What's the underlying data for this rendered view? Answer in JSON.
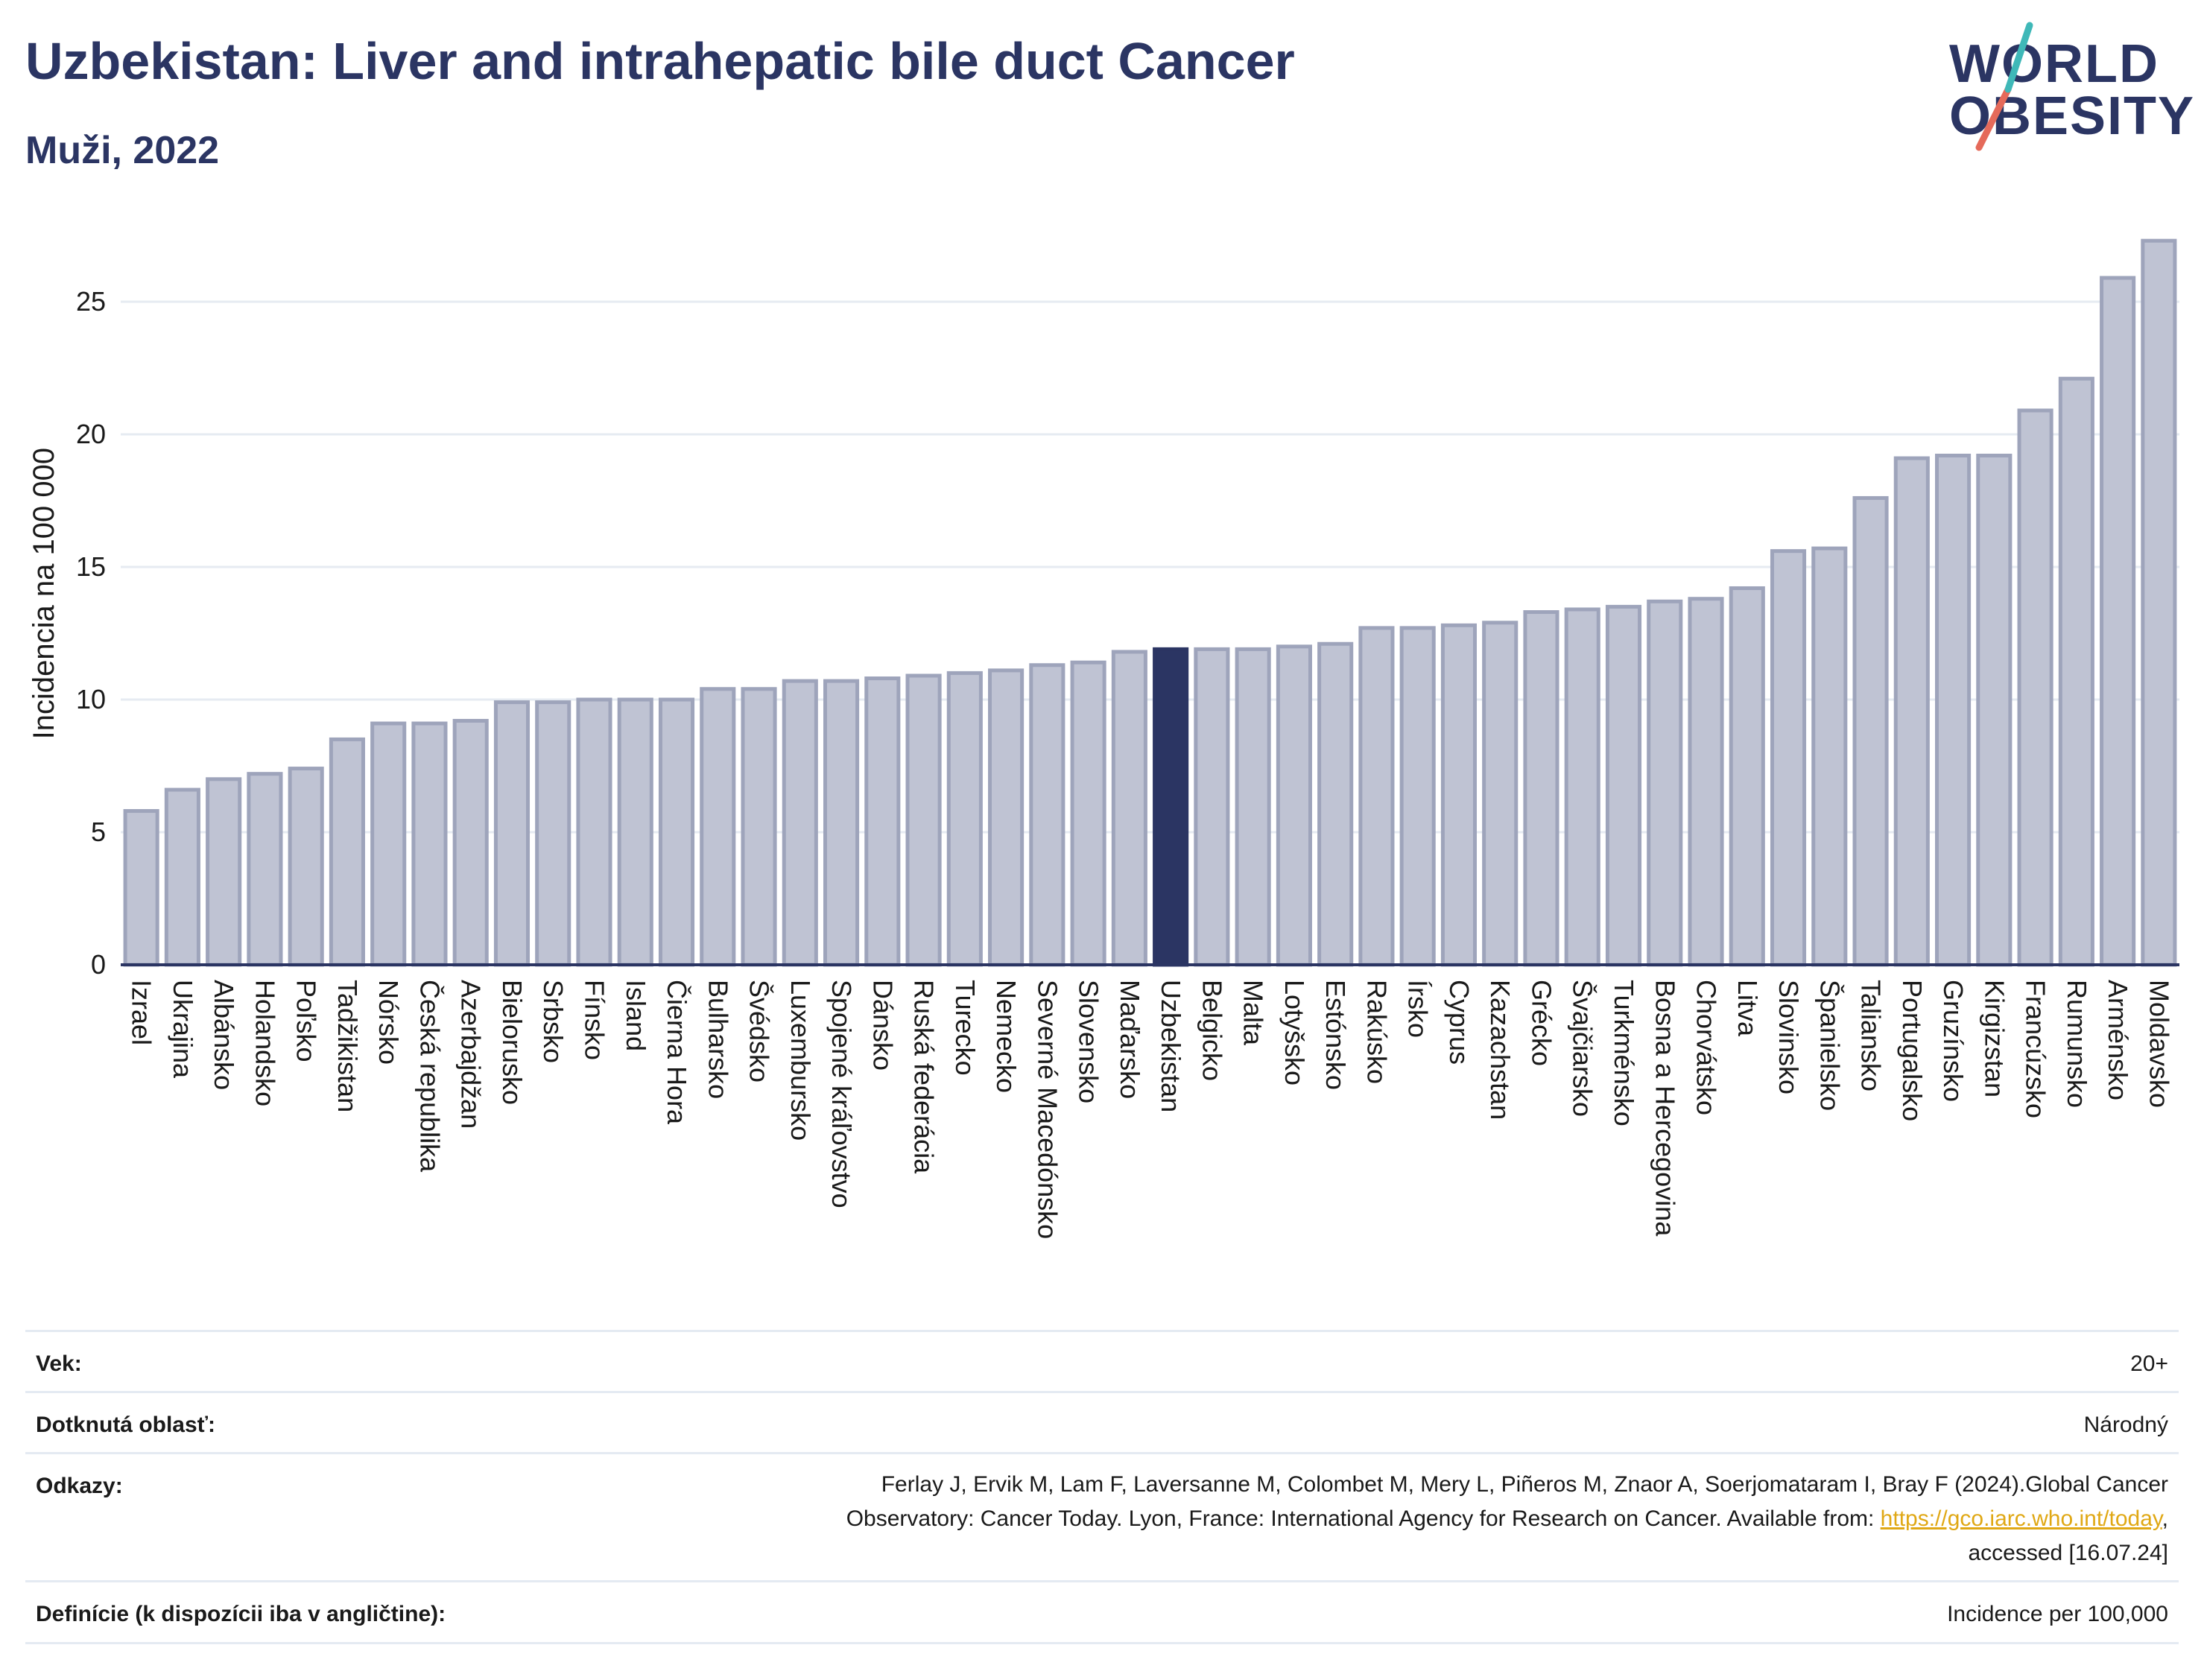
{
  "title": "Uzbekistan: Liver and intrahepatic bile duct Cancer",
  "subtitle": "Muži, 2022",
  "logo": {
    "line1": "WORLD",
    "line2": "OBESITY"
  },
  "colors": {
    "bar": "#bfc3d3",
    "bar_border": "#9ea4bb",
    "highlight": "#2b3563",
    "grid": "#e6ebf2",
    "axis": "#2b3563",
    "link": "#e0a815"
  },
  "chart_data": {
    "type": "bar",
    "ylabel": "Incidencia na 100 000",
    "xlabel": "",
    "ylim": [
      0,
      28
    ],
    "yticks": [
      0,
      5,
      10,
      15,
      20,
      25
    ],
    "highlight": "Uzbekistan",
    "grid": "horizontal",
    "categories": [
      "Izrael",
      "Ukrajina",
      "Albánsko",
      "Holandsko",
      "Poľsko",
      "Tadžikistan",
      "Nórsko",
      "Česká republika",
      "Azerbajdžan",
      "Bielorusko",
      "Srbsko",
      "Fínsko",
      "Island",
      "Čierna Hora",
      "Bulharsko",
      "Švédsko",
      "Luxembursko",
      "Spojené kráľovstvo",
      "Dánsko",
      "Ruská federácia",
      "Turecko",
      "Nemecko",
      "Severné Macedónsko",
      "Slovensko",
      "Maďarsko",
      "Uzbekistan",
      "Belgicko",
      "Malta",
      "Lotyšsko",
      "Estónsko",
      "Rakúsko",
      "Írsko",
      "Cyprus",
      "Kazachstan",
      "Grécko",
      "Švajčiarsko",
      "Turkménsko",
      "Bosna a Hercegovina",
      "Chorvátsko",
      "Litva",
      "Slovinsko",
      "Španielsko",
      "Taliansko",
      "Portugalsko",
      "Gruzínsko",
      "Kirgizstan",
      "Francúzsko",
      "Rumunsko",
      "Arménsko",
      "Moldavsko"
    ],
    "values": [
      5.8,
      6.6,
      7.0,
      7.2,
      7.4,
      8.5,
      9.1,
      9.1,
      9.2,
      9.9,
      9.9,
      10.0,
      10.0,
      10.0,
      10.4,
      10.4,
      10.7,
      10.7,
      10.8,
      10.9,
      11.0,
      11.1,
      11.3,
      11.4,
      11.8,
      11.9,
      11.9,
      11.9,
      12.0,
      12.1,
      12.7,
      12.7,
      12.8,
      12.9,
      13.3,
      13.4,
      13.5,
      13.7,
      13.8,
      14.2,
      15.6,
      15.7,
      17.6,
      19.1,
      19.2,
      19.2,
      20.9,
      22.1,
      25.9,
      27.3
    ]
  },
  "meta": {
    "age_label": "Vek:",
    "age_value": "20+",
    "area_label": "Dotknutá oblasť:",
    "area_value": "Národný",
    "refs_label": "Odkazy:",
    "refs_line1": "Ferlay J, Ervik M, Lam F, Laversanne M, Colombet M, Mery L, Piñeros M, Znaor A, Soerjomataram I, Bray F (2024).Global Cancer",
    "refs_line2_pre": "Observatory: Cancer Today. Lyon, France: International Agency for Research on Cancer. Available from: ",
    "refs_link": "https://gco.iarc.who.int/today",
    "refs_line2_post": ",",
    "refs_line3": "accessed [16.07.24]",
    "def_label": "Definície (k dispozícii iba v angličtine):",
    "def_value": "Incidence per 100,000"
  }
}
